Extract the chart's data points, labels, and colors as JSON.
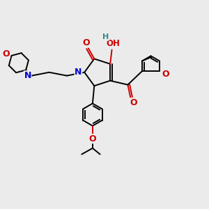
{
  "background_color": "#ebebeb",
  "atom_colors": {
    "O": "#cc0000",
    "N": "#0000cc",
    "C": "#000000",
    "H": "#338888"
  },
  "bond_color": "#000000",
  "bond_width": 1.4,
  "figsize": [
    3.0,
    3.0
  ],
  "dpi": 100,
  "xlim": [
    -2.5,
    3.5
  ],
  "ylim": [
    -3.2,
    2.2
  ]
}
